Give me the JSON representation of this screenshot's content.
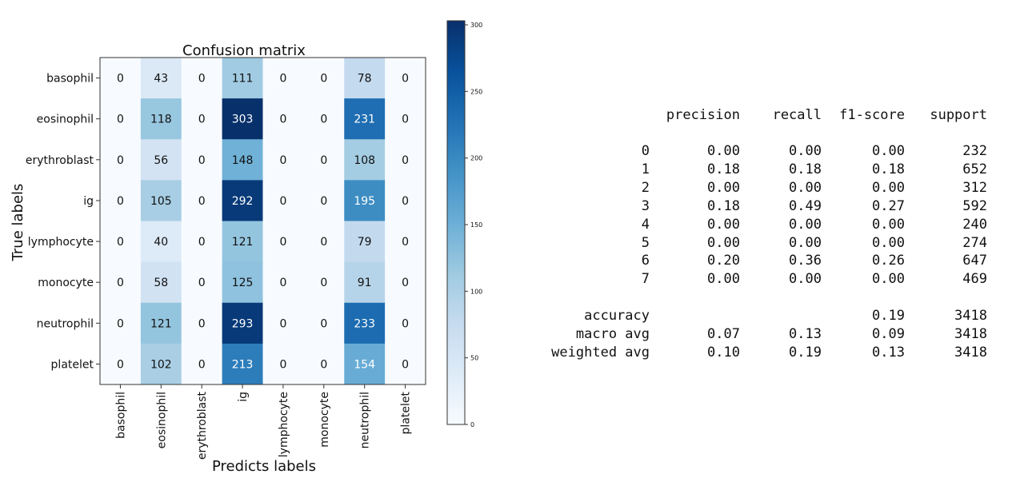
{
  "chart_data": {
    "type": "heatmap",
    "title": "Confusion matrix",
    "xlabel": "Predicts labels",
    "ylabel": "True labels",
    "categories": [
      "basophil",
      "eosinophil",
      "erythroblast",
      "ig",
      "lymphocyte",
      "monocyte",
      "neutrophil",
      "platelet"
    ],
    "matrix": [
      [
        0,
        43,
        0,
        111,
        0,
        0,
        78,
        0
      ],
      [
        0,
        118,
        0,
        303,
        0,
        0,
        231,
        0
      ],
      [
        0,
        56,
        0,
        148,
        0,
        0,
        108,
        0
      ],
      [
        0,
        105,
        0,
        292,
        0,
        0,
        195,
        0
      ],
      [
        0,
        40,
        0,
        121,
        0,
        0,
        79,
        0
      ],
      [
        0,
        58,
        0,
        125,
        0,
        0,
        91,
        0
      ],
      [
        0,
        121,
        0,
        293,
        0,
        0,
        233,
        0
      ],
      [
        0,
        102,
        0,
        213,
        0,
        0,
        154,
        0
      ]
    ],
    "colorbar": {
      "min": 0,
      "max": 303,
      "ticks": [
        0,
        50,
        100,
        150,
        200,
        250,
        300
      ]
    },
    "colormap": [
      "#f7fbff",
      "#deebf7",
      "#c6dbef",
      "#9ecae1",
      "#6baed6",
      "#4292c6",
      "#2171b5",
      "#08519c",
      "#08306b"
    ]
  },
  "report": {
    "headers": [
      "precision",
      "recall",
      "f1-score",
      "support"
    ],
    "rows": [
      {
        "label": "0",
        "precision": "0.00",
        "recall": "0.00",
        "f1": "0.00",
        "support": "232"
      },
      {
        "label": "1",
        "precision": "0.18",
        "recall": "0.18",
        "f1": "0.18",
        "support": "652"
      },
      {
        "label": "2",
        "precision": "0.00",
        "recall": "0.00",
        "f1": "0.00",
        "support": "312"
      },
      {
        "label": "3",
        "precision": "0.18",
        "recall": "0.49",
        "f1": "0.27",
        "support": "592"
      },
      {
        "label": "4",
        "precision": "0.00",
        "recall": "0.00",
        "f1": "0.00",
        "support": "240"
      },
      {
        "label": "5",
        "precision": "0.00",
        "recall": "0.00",
        "f1": "0.00",
        "support": "274"
      },
      {
        "label": "6",
        "precision": "0.20",
        "recall": "0.36",
        "f1": "0.26",
        "support": "647"
      },
      {
        "label": "7",
        "precision": "0.00",
        "recall": "0.00",
        "f1": "0.00",
        "support": "469"
      }
    ],
    "summary": [
      {
        "label": "accuracy",
        "precision": "",
        "recall": "",
        "f1": "0.19",
        "support": "3418"
      },
      {
        "label": "macro avg",
        "precision": "0.07",
        "recall": "0.13",
        "f1": "0.09",
        "support": "3418"
      },
      {
        "label": "weighted avg",
        "precision": "0.10",
        "recall": "0.19",
        "f1": "0.13",
        "support": "3418"
      }
    ]
  }
}
